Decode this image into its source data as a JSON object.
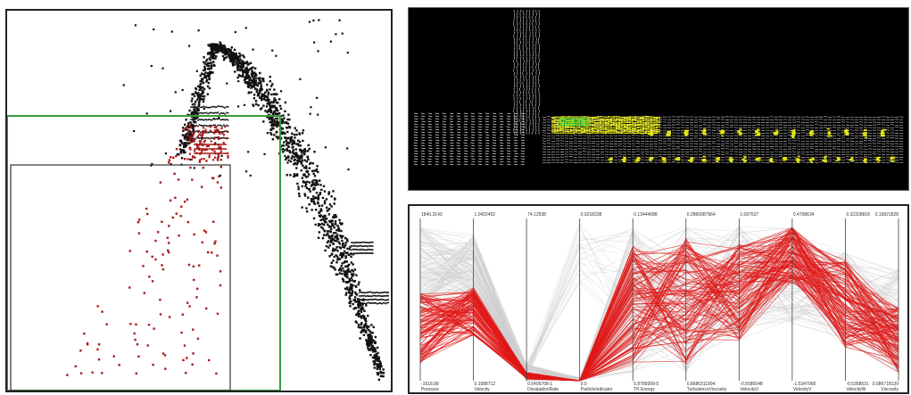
{
  "chart_data": [
    {
      "type": "scatter",
      "title": "",
      "xlabel": "",
      "ylabel": "",
      "grid": false,
      "series": [
        {
          "name": "",
          "color": "#111111"
        },
        {
          "name": "",
          "color": "#aa1a1a"
        }
      ],
      "selection_boxes": [
        {
          "color": "#3a9a3a"
        },
        {
          "color": "#333333"
        }
      ]
    },
    {
      "type": "line",
      "title": "",
      "background": "#000000",
      "colors": {
        "vectors": "#d8d8d8",
        "highlight": "#e6e61a",
        "accent": "#3ccf3c"
      }
    },
    {
      "type": "line",
      "title": "",
      "highlight_color": "#e01818",
      "context_color": "#cfcfcf",
      "axes": [
        {
          "name": "Pressure",
          "max": "1840.3143",
          "min": "-1618.88"
        },
        {
          "name": "Velocity",
          "max": "1.0422452",
          "min": "0.1088712"
        },
        {
          "name": "DissipationRate",
          "max": "74.12538",
          "min": "0.5405708-1"
        },
        {
          "name": "ParticleIndicator",
          "max": "0.0218238",
          "min": "0.0"
        },
        {
          "name": "TK Energy",
          "max": "0.13444088",
          "min": "5.8789308-5"
        },
        {
          "name": "TurbulenceViscosity",
          "max": "0.2860087964",
          "min": "0.8686311904"
        },
        {
          "name": "VelocityU",
          "max": "1.097537",
          "min": "-0.5580548"
        },
        {
          "name": "VelocityV",
          "max": "0.4708634",
          "min": "-1.5347068"
        },
        {
          "name": "VelocityW",
          "max": "0.32328818",
          "min": "-0.5358531"
        },
        {
          "name": "Viscosity",
          "max": "0.15821828",
          "min": "0.086718139"
        }
      ]
    }
  ]
}
